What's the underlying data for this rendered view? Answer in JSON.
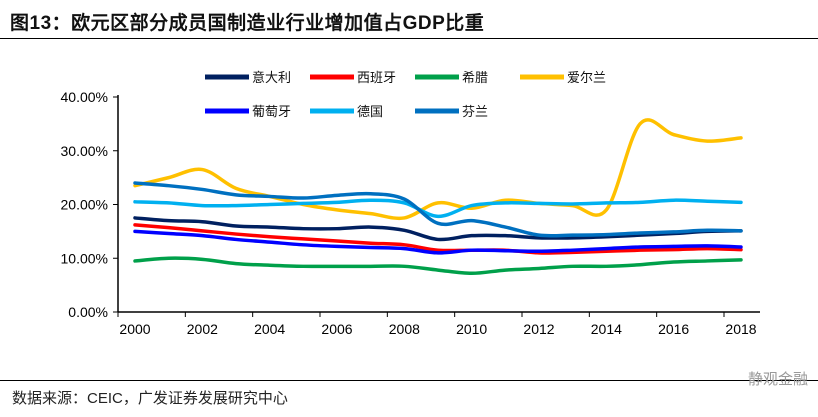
{
  "title": "图13：欧元区部分成员国制造业行业增加值占GDP比重",
  "source": "数据来源：CEIC，广发证券发展研究中心",
  "watermark": "静观金融",
  "chart_data": {
    "type": "line",
    "title": "图13：欧元区部分成员国制造业行业增加值占GDP比重",
    "xlabel": "",
    "ylabel": "",
    "x": [
      2000,
      2001,
      2002,
      2003,
      2004,
      2005,
      2006,
      2007,
      2008,
      2009,
      2010,
      2011,
      2012,
      2013,
      2014,
      2015,
      2016,
      2017,
      2018
    ],
    "x_ticks": [
      "2000",
      "2002",
      "2004",
      "2006",
      "2008",
      "2010",
      "2012",
      "2014",
      "2016",
      "2018"
    ],
    "y_ticks": [
      "0.00%",
      "10.00%",
      "20.00%",
      "30.00%",
      "40.00%"
    ],
    "ylim": [
      0,
      40
    ],
    "xlim": [
      2000,
      2018
    ],
    "grid": false,
    "legend_position": "top",
    "series": [
      {
        "name": "意大利",
        "color": "#002060",
        "values": [
          17.5,
          17.0,
          16.8,
          16.0,
          15.8,
          15.5,
          15.5,
          15.8,
          15.2,
          13.5,
          14.2,
          14.2,
          13.8,
          13.8,
          14.0,
          14.3,
          14.6,
          15.0,
          15.1
        ]
      },
      {
        "name": "西班牙",
        "color": "#ff0000",
        "values": [
          16.2,
          15.7,
          15.1,
          14.5,
          14.0,
          13.6,
          13.2,
          12.8,
          12.5,
          11.5,
          11.5,
          11.5,
          11.0,
          11.1,
          11.3,
          11.5,
          11.6,
          11.8,
          11.6
        ]
      },
      {
        "name": "希腊",
        "color": "#00a04a",
        "values": [
          9.5,
          10.0,
          9.8,
          9.0,
          8.7,
          8.5,
          8.5,
          8.5,
          8.5,
          7.8,
          7.2,
          7.8,
          8.1,
          8.5,
          8.5,
          8.8,
          9.3,
          9.5,
          9.7
        ]
      },
      {
        "name": "爱尔兰",
        "color": "#ffc000",
        "values": [
          23.5,
          25.0,
          26.5,
          23.0,
          21.5,
          20.0,
          19.0,
          18.3,
          17.5,
          20.3,
          19.3,
          20.8,
          20.2,
          19.8,
          19.0,
          35.0,
          33.0,
          31.8,
          32.4
        ]
      },
      {
        "name": "葡萄牙",
        "color": "#0000ff",
        "values": [
          15.0,
          14.6,
          14.2,
          13.5,
          13.0,
          12.5,
          12.2,
          12.0,
          11.8,
          11.0,
          11.5,
          11.4,
          11.3,
          11.5,
          11.8,
          12.1,
          12.2,
          12.3,
          12.1
        ]
      },
      {
        "name": "德国",
        "color": "#00b0f0",
        "values": [
          20.5,
          20.3,
          19.8,
          19.8,
          20.0,
          20.2,
          20.4,
          20.8,
          20.3,
          17.8,
          19.8,
          20.3,
          20.2,
          20.1,
          20.3,
          20.4,
          20.8,
          20.6,
          20.4
        ]
      },
      {
        "name": "芬兰",
        "color": "#0070c0",
        "values": [
          24.0,
          23.5,
          22.8,
          21.8,
          21.5,
          21.2,
          21.7,
          22.0,
          21.0,
          16.5,
          17.0,
          15.8,
          14.3,
          14.3,
          14.4,
          14.7,
          14.9,
          15.2,
          15.1
        ]
      }
    ]
  }
}
